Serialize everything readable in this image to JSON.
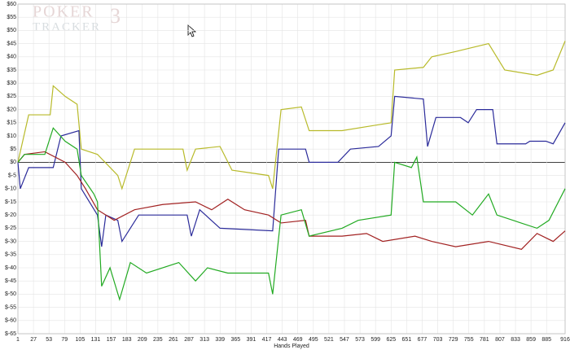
{
  "chart_data": {
    "type": "line",
    "logo": "POKER",
    "logo_sub": "TRACKER",
    "logo_num": "3",
    "x_label": "Hands Played",
    "xlim": [
      1,
      916
    ],
    "xticks": [
      1,
      27,
      53,
      79,
      105,
      131,
      157,
      183,
      209,
      235,
      261,
      287,
      313,
      339,
      365,
      391,
      417,
      443,
      469,
      495,
      521,
      547,
      573,
      599,
      625,
      651,
      677,
      703,
      729,
      755,
      781,
      807,
      833,
      859,
      885,
      916
    ],
    "ylim": [
      -65,
      60
    ],
    "yticks": [
      {
        "value": 60,
        "label": "$60"
      },
      {
        "value": 55,
        "label": "$55"
      },
      {
        "value": 50,
        "label": "$50"
      },
      {
        "value": 45,
        "label": "$45"
      },
      {
        "value": 40,
        "label": "$40"
      },
      {
        "value": 35,
        "label": "$35"
      },
      {
        "value": 30,
        "label": "$30"
      },
      {
        "value": 25,
        "label": "$25"
      },
      {
        "value": 20,
        "label": "$20"
      },
      {
        "value": 15,
        "label": "$15"
      },
      {
        "value": 10,
        "label": "$10"
      },
      {
        "value": 5,
        "label": "$5"
      },
      {
        "value": 0,
        "label": "$0"
      },
      {
        "value": -5,
        "label": "$-5"
      },
      {
        "value": -10,
        "label": "$-10"
      },
      {
        "value": -15,
        "label": "$-15"
      },
      {
        "value": -20,
        "label": "$-20"
      },
      {
        "value": -25,
        "label": "$-25"
      },
      {
        "value": -30,
        "label": "$-30"
      },
      {
        "value": -35,
        "label": "$-35"
      },
      {
        "value": -40,
        "label": "$-40"
      },
      {
        "value": -45,
        "label": "$-45"
      },
      {
        "value": -50,
        "label": "$-50"
      },
      {
        "value": -55,
        "label": "$-55"
      },
      {
        "value": -60,
        "label": "$-60"
      },
      {
        "value": -65,
        "label": "$-65"
      }
    ],
    "grid": true,
    "series": [
      {
        "color": "#b8ba2a",
        "x": [
          1,
          19,
          55,
          60,
          80,
          100,
          107,
          134,
          168,
          175,
          196,
          277,
          284,
          298,
          339,
          359,
          420,
          427,
          441,
          475,
          488,
          543,
          597,
          625,
          631,
          679,
          693,
          733,
          788,
          815,
          869,
          896,
          916
        ],
        "values": [
          0,
          18,
          18,
          29,
          25,
          22,
          5,
          3,
          -5,
          -10,
          5,
          5,
          -3,
          5,
          6,
          -3,
          -5,
          -10,
          20,
          21,
          12,
          12,
          14,
          15,
          35,
          36,
          40,
          42,
          45,
          35,
          33,
          35,
          46
        ]
      },
      {
        "color": "#2b2b9a",
        "x": [
          1,
          5,
          19,
          60,
          73,
          103,
          107,
          134,
          141,
          148,
          168,
          175,
          203,
          284,
          291,
          305,
          339,
          427,
          437,
          482,
          488,
          536,
          557,
          604,
          625,
          631,
          679,
          686,
          700,
          741,
          754,
          768,
          795,
          802,
          850,
          857,
          884,
          896,
          916
        ],
        "values": [
          0,
          -10,
          -2,
          -2,
          10,
          12,
          -10,
          -20,
          -32,
          -20,
          -22,
          -30,
          -20,
          -20,
          -28,
          -18,
          -25,
          -26,
          5,
          5,
          0,
          0,
          5,
          6,
          10,
          25,
          24,
          6,
          17,
          17,
          15,
          20,
          20,
          7,
          7,
          8,
          8,
          7,
          15
        ]
      },
      {
        "color": "#a22222",
        "x": [
          1,
          12,
          46,
          80,
          100,
          114,
          134,
          162,
          196,
          243,
          298,
          325,
          352,
          380,
          420,
          441,
          482,
          488,
          543,
          584,
          611,
          665,
          693,
          733,
          788,
          843,
          869,
          896,
          916
        ],
        "values": [
          0,
          3,
          4,
          0,
          -5,
          -10,
          -18,
          -22,
          -18,
          -16,
          -15,
          -18,
          -14,
          -18,
          -20,
          -23,
          -22,
          -28,
          -28,
          -27,
          -30,
          -28,
          -30,
          -32,
          -30,
          -33,
          -27,
          -30,
          -26
        ]
      },
      {
        "color": "#22aa22",
        "x": [
          1,
          12,
          46,
          60,
          80,
          100,
          107,
          128,
          134,
          141,
          155,
          171,
          189,
          216,
          270,
          298,
          318,
          352,
          420,
          427,
          441,
          475,
          488,
          543,
          570,
          625,
          631,
          659,
          668,
          679,
          733,
          761,
          788,
          802,
          869,
          889,
          916
        ],
        "values": [
          0,
          3,
          3,
          13,
          8,
          5,
          -5,
          -12,
          -15,
          -47,
          -40,
          -52,
          -38,
          -42,
          -38,
          -45,
          -40,
          -42,
          -42,
          -50,
          -20,
          -18,
          -28,
          -25,
          -22,
          -20,
          0,
          -2,
          2,
          -15,
          -15,
          -20,
          -12,
          -20,
          -25,
          -22,
          -10
        ]
      }
    ]
  }
}
